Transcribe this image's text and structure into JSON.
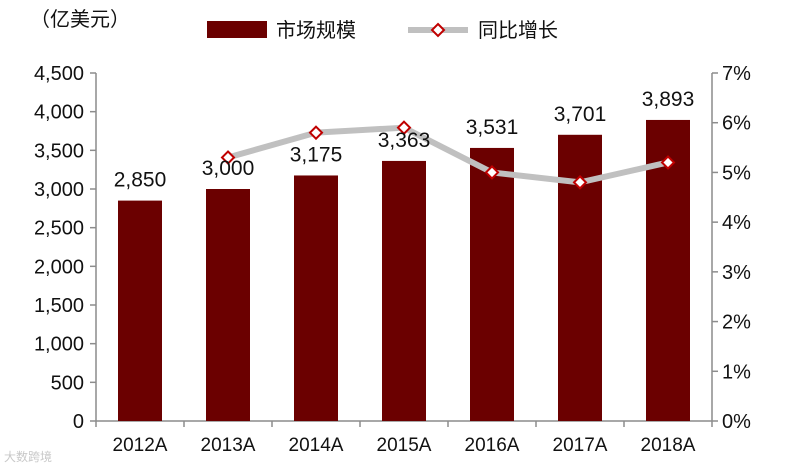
{
  "chart_data": {
    "type": "bar",
    "unit_label": "（亿美元）",
    "categories": [
      "2012A",
      "2013A",
      "2014A",
      "2015A",
      "2016A",
      "2017A",
      "2018A"
    ],
    "series": [
      {
        "name": "市场规模",
        "type": "bar",
        "axis": "left",
        "color": "#6b0000",
        "values": [
          2850,
          3000,
          3175,
          3363,
          3531,
          3701,
          3893
        ],
        "labels": [
          "2,850",
          "3,000",
          "3,175",
          "3,363",
          "3,531",
          "3,701",
          "3,893"
        ]
      },
      {
        "name": "同比增长",
        "type": "line",
        "axis": "right",
        "color": "#c0c0c0",
        "marker_color": "#c00000",
        "values": [
          null,
          5.3,
          5.8,
          5.9,
          5.0,
          4.8,
          5.2
        ]
      }
    ],
    "y_left": {
      "ylim": [
        0,
        4500
      ],
      "ticks": [
        "0",
        "500",
        "1,000",
        "1,500",
        "2,000",
        "2,500",
        "3,000",
        "3,500",
        "4,000",
        "4,500"
      ]
    },
    "y_right": {
      "ylim": [
        0,
        7
      ],
      "ticks": [
        "0%",
        "1%",
        "2%",
        "3%",
        "4%",
        "5%",
        "6%",
        "7%"
      ]
    },
    "legend": "top",
    "grid": false
  },
  "watermark": "大数跨境"
}
